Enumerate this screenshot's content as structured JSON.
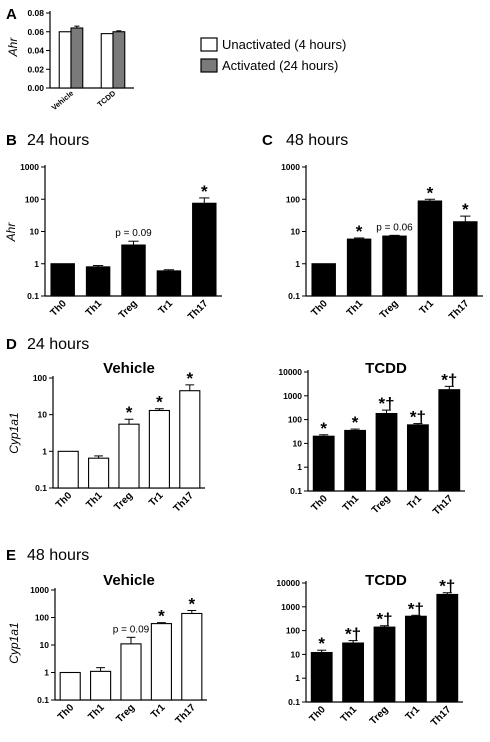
{
  "chart_data": [
    {
      "id": "A",
      "type": "bar",
      "panel_label": "A",
      "time_label": "",
      "subtitle": "",
      "ylabel": "Ahr",
      "scale": "linear",
      "ylim": [
        0,
        0.08
      ],
      "yticks": [
        "0.00",
        "0.02",
        "0.04",
        "0.06",
        "0.08"
      ],
      "categories": [
        "Vehicle",
        "TCDD"
      ],
      "series": [
        {
          "name": "Unactivated (4 hours)",
          "color": "#ffffff",
          "values": [
            0.06,
            0.058
          ],
          "errors": [
            0.0,
            0.0
          ]
        },
        {
          "name": "Activated (24 hours)",
          "color": "#7a7a7a",
          "values": [
            0.064,
            0.06
          ],
          "errors": [
            0.002,
            0.001
          ]
        }
      ],
      "annotations": [],
      "legend_position": "right"
    },
    {
      "id": "B",
      "type": "bar",
      "panel_label": "B",
      "time_label": "24 hours",
      "subtitle": "",
      "ylabel": "Ahr",
      "scale": "log",
      "ylim": [
        0.1,
        1000
      ],
      "yticks": [
        "0.1",
        "1",
        "10",
        "100",
        "1000"
      ],
      "categories": [
        "Th0",
        "Th1",
        "Treg",
        "Tr1",
        "Th17"
      ],
      "series": [
        {
          "color": "#000000",
          "values": [
            1.0,
            0.8,
            3.8,
            0.6,
            75
          ],
          "errors": [
            0,
            0.08,
            1.2,
            0.05,
            35
          ]
        }
      ],
      "annotations": [
        {
          "category": "Treg",
          "text": "p = 0.09"
        },
        {
          "category": "Th17",
          "text": "*"
        }
      ]
    },
    {
      "id": "C",
      "type": "bar",
      "panel_label": "C",
      "time_label": "48 hours",
      "subtitle": "",
      "ylabel": "",
      "scale": "log",
      "ylim": [
        0.1,
        1000
      ],
      "yticks": [
        "0.1",
        "1",
        "10",
        "100",
        "1000"
      ],
      "categories": [
        "Th0",
        "Th1",
        "Treg",
        "Tr1",
        "Th17"
      ],
      "series": [
        {
          "color": "#000000",
          "values": [
            1.0,
            5.8,
            7.2,
            88,
            20
          ],
          "errors": [
            0,
            0.5,
            0.4,
            12,
            10
          ]
        }
      ],
      "annotations": [
        {
          "category": "Th1",
          "text": "*"
        },
        {
          "category": "Treg",
          "text": "p = 0.06"
        },
        {
          "category": "Tr1",
          "text": "*"
        },
        {
          "category": "Th17",
          "text": "*"
        }
      ]
    },
    {
      "id": "D-vehicle",
      "type": "bar",
      "panel_label": "D",
      "time_label": "24 hours",
      "subtitle": "Vehicle",
      "ylabel": "Cyp1a1",
      "scale": "log",
      "ylim": [
        0.1,
        100
      ],
      "yticks": [
        "0.1",
        "1",
        "10",
        "100"
      ],
      "categories": [
        "Th0",
        "Th1",
        "Treg",
        "Tr1",
        "Th17"
      ],
      "series": [
        {
          "color": "#ffffff",
          "values": [
            1.0,
            0.65,
            5.5,
            13,
            45
          ],
          "errors": [
            0,
            0.1,
            2.0,
            1.5,
            20
          ]
        }
      ],
      "annotations": [
        {
          "category": "Treg",
          "text": "*"
        },
        {
          "category": "Tr1",
          "text": "*"
        },
        {
          "category": "Th17",
          "text": "*"
        }
      ]
    },
    {
      "id": "D-tcdd",
      "type": "bar",
      "panel_label": "",
      "time_label": "",
      "subtitle": "TCDD",
      "ylabel": "",
      "scale": "log",
      "ylim": [
        0.1,
        10000
      ],
      "yticks": [
        "0.1",
        "1",
        "10",
        "100",
        "1000",
        "10000"
      ],
      "categories": [
        "Th0",
        "Th1",
        "Treg",
        "Tr1",
        "Th17"
      ],
      "series": [
        {
          "color": "#000000",
          "values": [
            20,
            35,
            180,
            60,
            1800
          ],
          "errors": [
            3,
            5,
            70,
            8,
            700
          ]
        }
      ],
      "annotations": [
        {
          "category": "Th0",
          "text": "*"
        },
        {
          "category": "Th1",
          "text": "*"
        },
        {
          "category": "Treg",
          "text": "*†"
        },
        {
          "category": "Tr1",
          "text": "*†"
        },
        {
          "category": "Th17",
          "text": "*†"
        }
      ]
    },
    {
      "id": "E-vehicle",
      "type": "bar",
      "panel_label": "E",
      "time_label": "48 hours",
      "subtitle": "Vehicle",
      "ylabel": "Cyp1a1",
      "scale": "log",
      "ylim": [
        0.1,
        1000
      ],
      "yticks": [
        "0.1",
        "1",
        "10",
        "100",
        "1000"
      ],
      "categories": [
        "Th0",
        "Th1",
        "Treg",
        "Tr1",
        "Th17"
      ],
      "series": [
        {
          "color": "#ffffff",
          "values": [
            1.0,
            1.1,
            11,
            60,
            140
          ],
          "errors": [
            0,
            0.4,
            8,
            5,
            40
          ]
        }
      ],
      "annotations": [
        {
          "category": "Treg",
          "text": "p = 0.09"
        },
        {
          "category": "Tr1",
          "text": "*"
        },
        {
          "category": "Th17",
          "text": "*"
        }
      ]
    },
    {
      "id": "E-tcdd",
      "type": "bar",
      "panel_label": "",
      "time_label": "",
      "subtitle": "TCDD",
      "ylabel": "",
      "scale": "log",
      "ylim": [
        0.1,
        10000
      ],
      "yticks": [
        "0.1",
        "1",
        "10",
        "100",
        "1000",
        "10000"
      ],
      "categories": [
        "Th0",
        "Th1",
        "Treg",
        "Tr1",
        "Th17"
      ],
      "series": [
        {
          "color": "#000000",
          "values": [
            12,
            30,
            140,
            400,
            3300
          ],
          "errors": [
            3,
            8,
            20,
            40,
            600
          ]
        }
      ],
      "annotations": [
        {
          "category": "Th0",
          "text": "*"
        },
        {
          "category": "Th1",
          "text": "*†"
        },
        {
          "category": "Treg",
          "text": "*†"
        },
        {
          "category": "Tr1",
          "text": "*†"
        },
        {
          "category": "Th17",
          "text": "*†"
        }
      ]
    }
  ]
}
